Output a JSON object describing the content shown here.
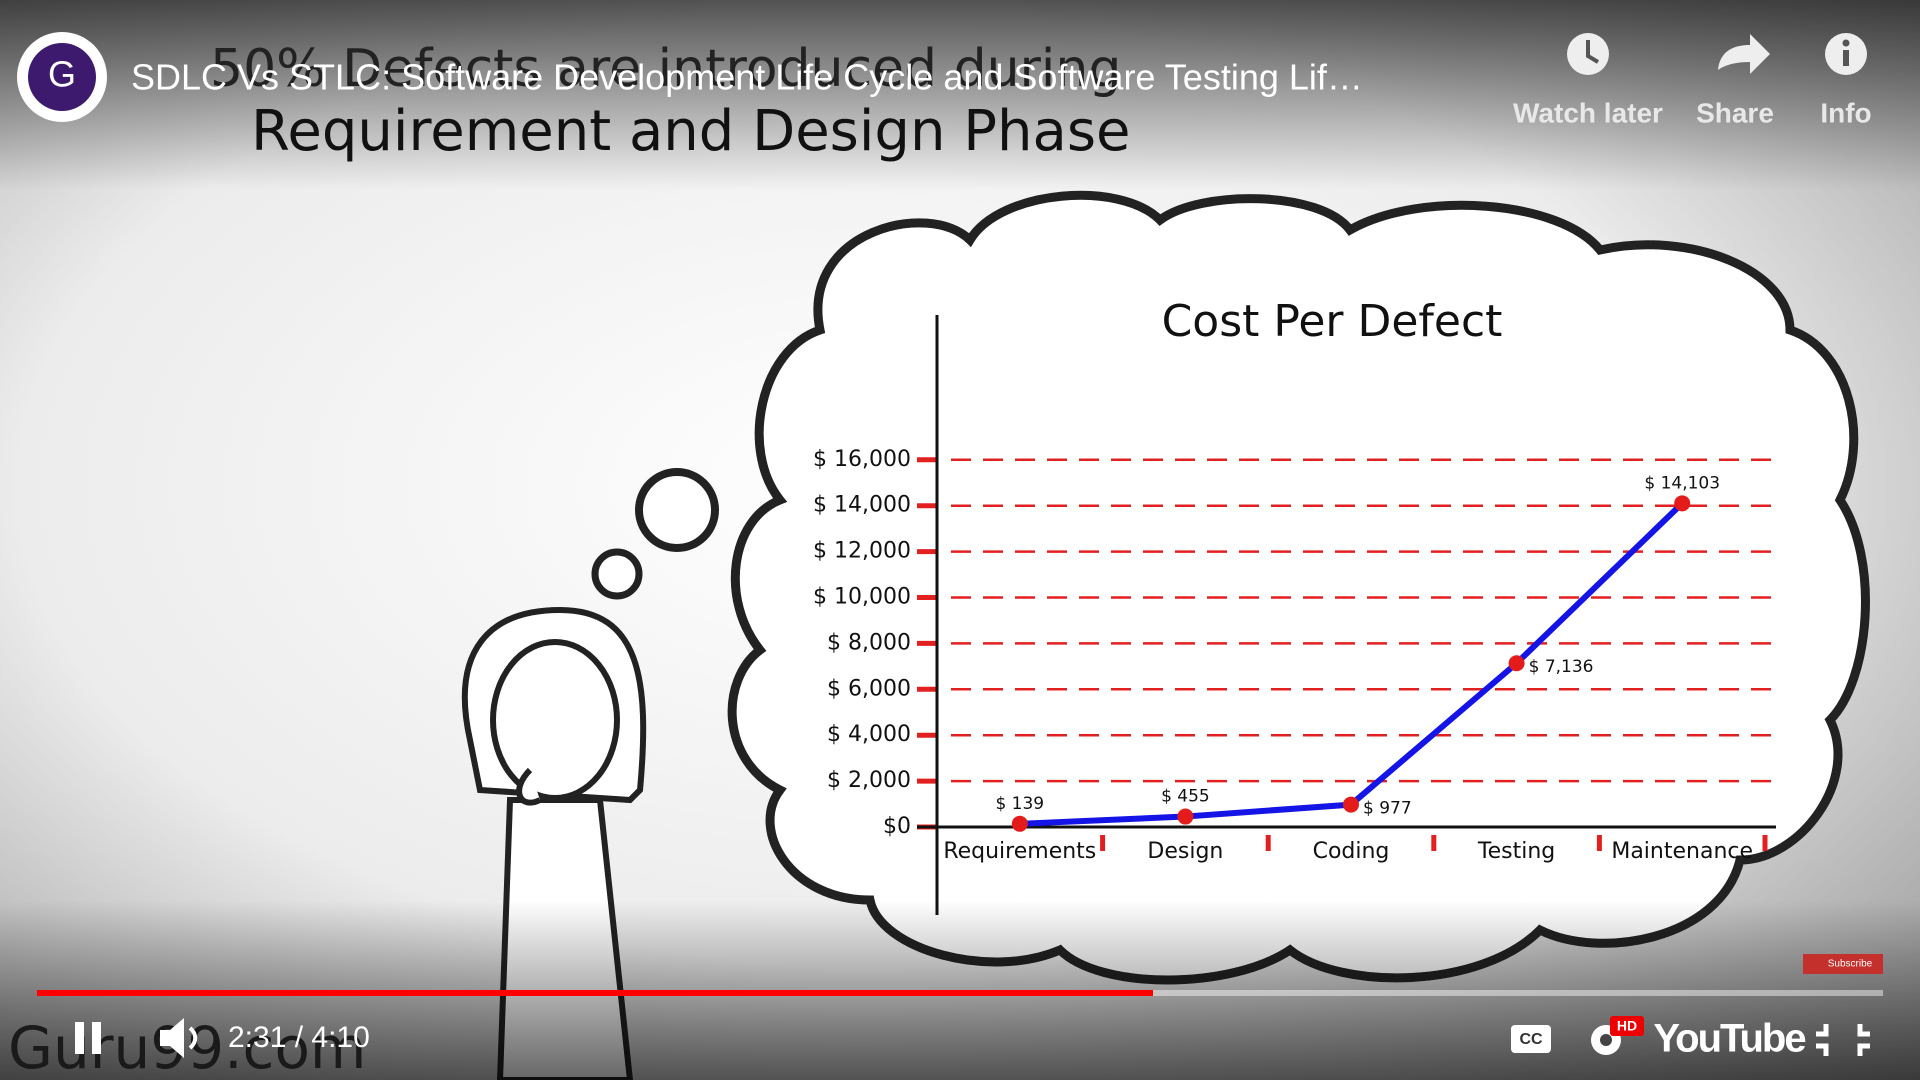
{
  "player": {
    "avatar_letter": "G",
    "title": "SDLC Vs STLC: Software Development Life Cycle and Software Testing Lif…",
    "actions": [
      "Watch later",
      "Share",
      "Info"
    ],
    "time": "2:31 / 4:10",
    "hd_badge": "HD",
    "logo": "YouTube"
  },
  "video": {
    "headline": [
      "50% Defects are introduced during",
      "Requirement and Design Phase"
    ],
    "watermark": "Guru99.com",
    "subscribe": "Subscribe"
  },
  "chart_data": {
    "type": "line",
    "title": "Cost Per Defect",
    "categories": [
      "Requirements",
      "Design",
      "Coding",
      "Testing",
      "Maintenance"
    ],
    "values": [
      139,
      455,
      977,
      7136,
      14103
    ],
    "value_labels": [
      "$ 139",
      "$ 455",
      "$ 977",
      "$ 7,136",
      "$ 14,103"
    ],
    "color": "#1414e6",
    "marker_color": "#e31b1b",
    "grid_color": "#e32020",
    "ylim": [
      0,
      20000
    ],
    "yticks": [
      {
        "value": 0,
        "label": "$0"
      },
      {
        "value": 2000,
        "label": "$ 2,000"
      },
      {
        "value": 4000,
        "label": "$ 4,000"
      },
      {
        "value": 6000,
        "label": "$ 6,000"
      },
      {
        "value": 8000,
        "label": "$ 8,000"
      },
      {
        "value": 10000,
        "label": "$ 10,000"
      },
      {
        "value": 12000,
        "label": "$ 12,000"
      },
      {
        "value": 14000,
        "label": "$ 14,000"
      },
      {
        "value": 16000,
        "label": "$ 16,000"
      }
    ],
    "grid": true
  }
}
